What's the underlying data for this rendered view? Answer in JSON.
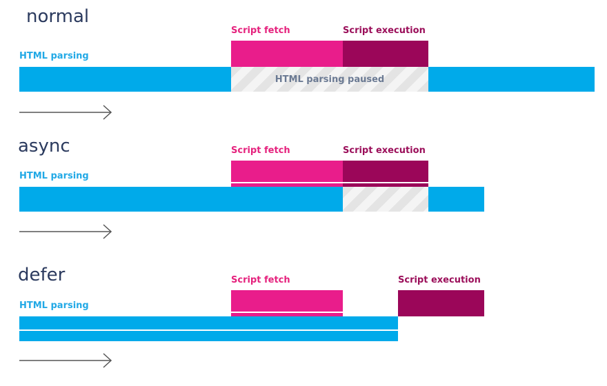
{
  "colors": {
    "parsing": "#00aaea",
    "fetch": "#e91d8b",
    "execution": "#9b0659",
    "paused_light": "#f4f4f4",
    "paused_dark": "#e4e4e4",
    "title": "#2b3a5e",
    "arrow": "#555555"
  },
  "labels": {
    "html_parsing": "HTML parsing",
    "script_fetch": "Script fetch",
    "script_execution": "Script execution",
    "html_parsing_paused": "HTML parsing paused"
  },
  "sections": {
    "normal": {
      "title": "normal"
    },
    "async": {
      "title": "async"
    },
    "defer": {
      "title": "defer"
    }
  },
  "icons": {
    "timeline_arrow": "arrow-right-icon"
  }
}
